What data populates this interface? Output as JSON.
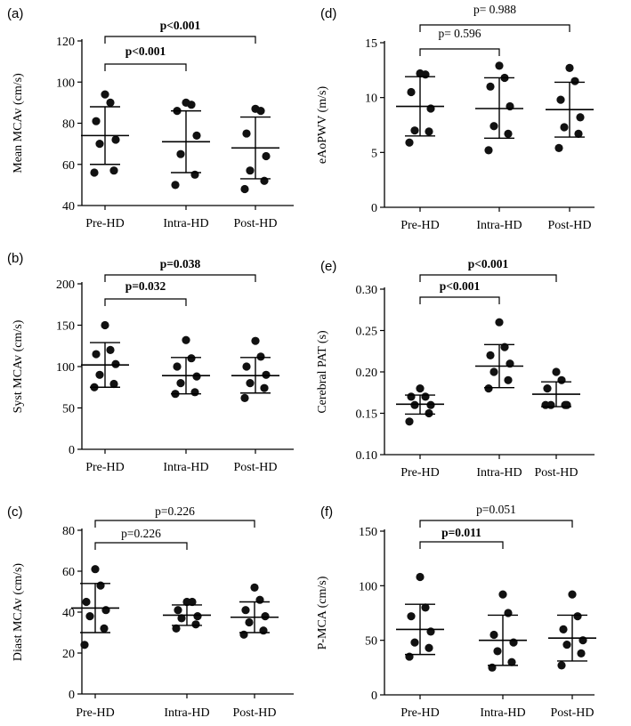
{
  "chart_data": [
    {
      "label": "(a)",
      "type": "scatter",
      "ylabel": "Mean MCAv (cm/s)",
      "ylim": [
        40,
        120
      ],
      "yticks": [
        40,
        60,
        80,
        100,
        120
      ],
      "categories": [
        "Pre-HD",
        "Intra-HD",
        "Post-HD"
      ],
      "groups": [
        {
          "mean": 74,
          "sd_upper": 88,
          "sd_lower": 60,
          "points": [
            56,
            57,
            70,
            72,
            81,
            90,
            94
          ]
        },
        {
          "mean": 71,
          "sd_upper": 86,
          "sd_lower": 56,
          "points": [
            50,
            55,
            65,
            74,
            86,
            89,
            90
          ]
        },
        {
          "mean": 68,
          "sd_upper": 83,
          "sd_lower": 53,
          "points": [
            48,
            52,
            57,
            64,
            75,
            86,
            87
          ]
        }
      ],
      "comparisons": [
        {
          "from": 0,
          "to": 1,
          "text": "p<0.001",
          "bold": true,
          "level": 1
        },
        {
          "from": 0,
          "to": 2,
          "text": "p<0.001",
          "bold": true,
          "level": 2
        }
      ]
    },
    {
      "label": "(d)",
      "type": "scatter",
      "ylabel": "eAoPWV (m/s)",
      "ylim": [
        0,
        15
      ],
      "yticks": [
        0,
        5,
        10,
        15
      ],
      "categories": [
        "Pre-HD",
        "Intra-HD",
        "Post-HD"
      ],
      "groups": [
        {
          "mean": 9.2,
          "sd_upper": 11.9,
          "sd_lower": 6.5,
          "points": [
            5.9,
            6.9,
            7.0,
            9.0,
            10.5,
            12.1,
            12.2
          ]
        },
        {
          "mean": 9.0,
          "sd_upper": 11.8,
          "sd_lower": 6.3,
          "points": [
            5.2,
            6.7,
            7.4,
            9.2,
            11.0,
            11.8,
            12.9
          ]
        },
        {
          "mean": 8.9,
          "sd_upper": 11.4,
          "sd_lower": 6.4,
          "points": [
            5.4,
            6.7,
            7.3,
            8.2,
            9.8,
            11.5,
            12.7
          ]
        }
      ],
      "comparisons": [
        {
          "from": 0,
          "to": 1,
          "text": "p= 0.596",
          "bold": false,
          "level": 1
        },
        {
          "from": 0,
          "to": 2,
          "text": "p= 0.988",
          "bold": false,
          "level": 2
        }
      ]
    },
    {
      "label": "(b)",
      "type": "scatter",
      "ylabel": "Syst MCAv (cm/s)",
      "ylim": [
        0,
        200
      ],
      "yticks": [
        0,
        50,
        100,
        150,
        200
      ],
      "categories": [
        "Pre-HD",
        "Intra-HD",
        "Post-HD"
      ],
      "groups": [
        {
          "mean": 102,
          "sd_upper": 129,
          "sd_lower": 75,
          "points": [
            75,
            79,
            90,
            103,
            115,
            120,
            150
          ]
        },
        {
          "mean": 89,
          "sd_upper": 111,
          "sd_lower": 67,
          "points": [
            67,
            69,
            80,
            88,
            100,
            110,
            132
          ]
        },
        {
          "mean": 89,
          "sd_upper": 111,
          "sd_lower": 68,
          "points": [
            62,
            74,
            80,
            90,
            100,
            112,
            131
          ]
        }
      ],
      "comparisons": [
        {
          "from": 0,
          "to": 1,
          "text": "p=0.032",
          "bold": true,
          "level": 1
        },
        {
          "from": 0,
          "to": 2,
          "text": "p=0.038",
          "bold": true,
          "level": 2
        }
      ]
    },
    {
      "label": "(e)",
      "type": "scatter",
      "ylabel": "Cerebral PAT (s)",
      "ylim": [
        0.1,
        0.3
      ],
      "yticks": [
        "0.10",
        "0.15",
        "0.20",
        "0.25",
        "0.30"
      ],
      "categories": [
        "Pre-HD",
        "Intra-HD",
        "Post-HD"
      ],
      "groups": [
        {
          "mean": 0.161,
          "sd_upper": 0.172,
          "sd_lower": 0.149,
          "points": [
            0.14,
            0.15,
            0.16,
            0.16,
            0.17,
            0.17,
            0.18
          ]
        },
        {
          "mean": 0.207,
          "sd_upper": 0.233,
          "sd_lower": 0.181,
          "points": [
            0.18,
            0.19,
            0.2,
            0.21,
            0.22,
            0.23,
            0.26
          ]
        },
        {
          "mean": 0.173,
          "sd_upper": 0.188,
          "sd_lower": 0.158,
          "points": [
            0.16,
            0.16,
            0.16,
            0.16,
            0.18,
            0.19,
            0.2
          ]
        }
      ],
      "comparisons": [
        {
          "from": 0,
          "to": 1,
          "text": "p<0.001",
          "bold": true,
          "level": 1
        },
        {
          "from": 0,
          "to": 2,
          "text": "p<0.001",
          "bold": true,
          "level": 2
        }
      ]
    },
    {
      "label": "(c)",
      "type": "scatter",
      "ylabel": "Diast MCAv (cm/s)",
      "ylim": [
        0,
        80
      ],
      "yticks": [
        0,
        20,
        40,
        60,
        80
      ],
      "categories": [
        "Pre-HD",
        "Intra-HD",
        "Post-HD"
      ],
      "groups": [
        {
          "mean": 42,
          "sd_upper": 54,
          "sd_lower": 30,
          "points": [
            24,
            32,
            38,
            41,
            45,
            53,
            61
          ]
        },
        {
          "mean": 38.5,
          "sd_upper": 43.5,
          "sd_lower": 33.5,
          "points": [
            32,
            34,
            37,
            38,
            41,
            45,
            45
          ]
        },
        {
          "mean": 37.5,
          "sd_upper": 45,
          "sd_lower": 30,
          "points": [
            29,
            31,
            35,
            38,
            41,
            46,
            52
          ]
        }
      ],
      "comparisons": [
        {
          "from": 0,
          "to": 1,
          "text": "p=0.226",
          "bold": false,
          "level": 1
        },
        {
          "from": 0,
          "to": 2,
          "text": "p=0.226",
          "bold": false,
          "level": 2
        }
      ]
    },
    {
      "label": "(f)",
      "type": "scatter",
      "ylabel": "P-MCA (cm/s)",
      "ylim": [
        0,
        150
      ],
      "yticks": [
        0,
        50,
        100,
        150
      ],
      "categories": [
        "Pre-HD",
        "Intra-HD",
        "Post-HD"
      ],
      "groups": [
        {
          "mean": 60,
          "sd_upper": 83,
          "sd_lower": 37,
          "points": [
            35,
            43,
            48,
            58,
            72,
            80,
            108
          ]
        },
        {
          "mean": 50,
          "sd_upper": 73,
          "sd_lower": 27,
          "points": [
            25,
            30,
            40,
            48,
            55,
            75,
            92
          ]
        },
        {
          "mean": 52,
          "sd_upper": 73,
          "sd_lower": 31,
          "points": [
            27,
            38,
            46,
            50,
            60,
            72,
            92
          ]
        }
      ],
      "comparisons": [
        {
          "from": 0,
          "to": 1,
          "text": "p=0.011",
          "bold": true,
          "level": 1
        },
        {
          "from": 0,
          "to": 2,
          "text": "p=0.051",
          "bold": false,
          "level": 2
        }
      ]
    }
  ]
}
